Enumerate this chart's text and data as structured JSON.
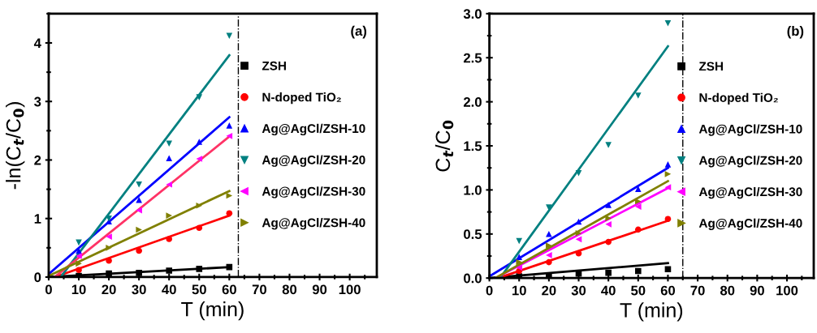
{
  "chart_data": [
    {
      "type": "scatter",
      "xlabel": "T (min)",
      "ylabel": "-ln(C$_{t}$/C$_{0}$)",
      "annotations": [
        "(a)"
      ],
      "xlim": [
        0,
        109
      ],
      "xticks": [
        0,
        10,
        20,
        30,
        40,
        50,
        60,
        70,
        80,
        90,
        100
      ],
      "ylim": [
        0,
        4.5
      ],
      "yticks": [
        0,
        1,
        2,
        3,
        4
      ],
      "legend": "right",
      "ref_lines": [
        {
          "axis": "x",
          "value": 63,
          "color": "#000000",
          "line_style": "dashdot"
        }
      ],
      "x": [
        10,
        20,
        30,
        40,
        50,
        60
      ],
      "series": [
        {
          "name": "ZSH",
          "color": "#000000",
          "marker": "square",
          "values": [
            0.02,
            0.06,
            0.07,
            0.11,
            0.14,
            0.17
          ]
        },
        {
          "name": "N-doped TiO₂",
          "color": "#ff0000",
          "marker": "circle",
          "values": [
            0.12,
            0.28,
            0.45,
            0.65,
            0.84,
            1.09
          ]
        },
        {
          "name": "Ag@AgCl/ZSH-10",
          "color": "#0000ff",
          "marker": "triangle",
          "values": [
            0.45,
            0.95,
            1.32,
            2.03,
            2.31,
            2.59
          ]
        },
        {
          "name": "Ag@AgCl/ZSH-20",
          "color": "#008080",
          "marker": "triangle-down",
          "values": [
            0.59,
            1.0,
            1.58,
            2.28,
            3.07,
            4.12
          ]
        },
        {
          "name": "Ag@AgCl/ZSH-30",
          "color": "#ff00ff",
          "marker": "triangle-left",
          "values": [
            0.36,
            0.69,
            1.14,
            1.58,
            2.02,
            2.41
          ]
        },
        {
          "name": "Ag@AgCl/ZSH-40",
          "color": "#808000",
          "marker": "triangle-right",
          "values": [
            0.23,
            0.5,
            0.81,
            1.05,
            1.22,
            1.39
          ]
        },
        {
          "type": "line",
          "color": "#000000",
          "x": [
            0,
            60
          ],
          "values": [
            0,
            0.17
          ]
        },
        {
          "type": "line",
          "color": "#ff0000",
          "x": [
            2,
            60
          ],
          "values": [
            0,
            1.05
          ]
        },
        {
          "type": "line",
          "color": "#0000ff",
          "x": [
            0,
            60
          ],
          "values": [
            0.05,
            2.73
          ]
        },
        {
          "type": "line",
          "color": "#008080",
          "x": [
            4,
            60
          ],
          "values": [
            0,
            3.79
          ]
        },
        {
          "type": "line",
          "color": "#ff3366",
          "x": [
            2,
            60
          ],
          "values": [
            0,
            2.4
          ]
        },
        {
          "type": "line",
          "color": "#808000",
          "x": [
            0,
            60
          ],
          "values": [
            0.02,
            1.47
          ]
        }
      ]
    },
    {
      "type": "scatter",
      "xlabel": "T (min)",
      "ylabel": "C$_{t}$/C$_{0}$",
      "annotations": [
        "(b)"
      ],
      "xlim": [
        0,
        109
      ],
      "xticks": [
        0,
        10,
        20,
        30,
        40,
        50,
        60,
        70,
        80,
        90,
        100
      ],
      "ylim": [
        0,
        3.0
      ],
      "yticks": [
        {
          "value": 0,
          "label": "0.0"
        },
        0.5,
        {
          "value": 1,
          "label": "1.0"
        },
        1.5,
        {
          "value": 2,
          "label": "2.0"
        },
        2.5,
        {
          "value": 3,
          "label": "3.0"
        }
      ],
      "legend": "right",
      "ref_lines": [
        {
          "axis": "x",
          "value": 65,
          "color": "#000000",
          "line_style": "dashdot"
        }
      ],
      "x": [
        10,
        20,
        30,
        40,
        50,
        60
      ],
      "series": [
        {
          "name": "ZSH",
          "color": "#000000",
          "marker": "square",
          "values": [
            0.02,
            0.03,
            0.05,
            0.06,
            0.08,
            0.1
          ]
        },
        {
          "name": "N-doped TiO₂",
          "color": "#ff0000",
          "marker": "circle",
          "values": [
            0.08,
            0.18,
            0.28,
            0.41,
            0.55,
            0.67
          ]
        },
        {
          "name": "Ag@AgCl/ZSH-10",
          "color": "#0000ff",
          "marker": "triangle",
          "values": [
            0.24,
            0.5,
            0.64,
            0.83,
            1.01,
            1.29
          ]
        },
        {
          "name": "Ag@AgCl/ZSH-20",
          "color": "#008080",
          "marker": "triangle-down",
          "values": [
            0.42,
            0.8,
            1.19,
            1.51,
            2.07,
            2.89
          ]
        },
        {
          "name": "Ag@AgCl/ZSH-30",
          "color": "#ff00ff",
          "marker": "triangle-left",
          "values": [
            0.12,
            0.26,
            0.44,
            0.61,
            0.81,
            1.03
          ]
        },
        {
          "name": "Ag@AgCl/ZSH-40",
          "color": "#808000",
          "marker": "triangle-right",
          "values": [
            0.18,
            0.37,
            0.51,
            0.68,
            0.87,
            1.18
          ]
        },
        {
          "type": "line",
          "color": "#000000",
          "x": [
            0,
            60
          ],
          "values": [
            0,
            0.17
          ]
        },
        {
          "type": "line",
          "color": "#ff0000",
          "x": [
            3,
            60
          ],
          "values": [
            0,
            0.65
          ]
        },
        {
          "type": "line",
          "color": "#0000ff",
          "x": [
            0,
            60
          ],
          "values": [
            0.02,
            1.25
          ]
        },
        {
          "type": "line",
          "color": "#008080",
          "x": [
            3.6,
            60
          ],
          "values": [
            0,
            2.63
          ]
        },
        {
          "type": "line",
          "color": "#ff00ff",
          "x": [
            2,
            60
          ],
          "values": [
            0,
            1.02
          ]
        },
        {
          "type": "line",
          "color": "#808000",
          "x": [
            2,
            60
          ],
          "values": [
            0,
            1.1
          ]
        }
      ]
    }
  ]
}
